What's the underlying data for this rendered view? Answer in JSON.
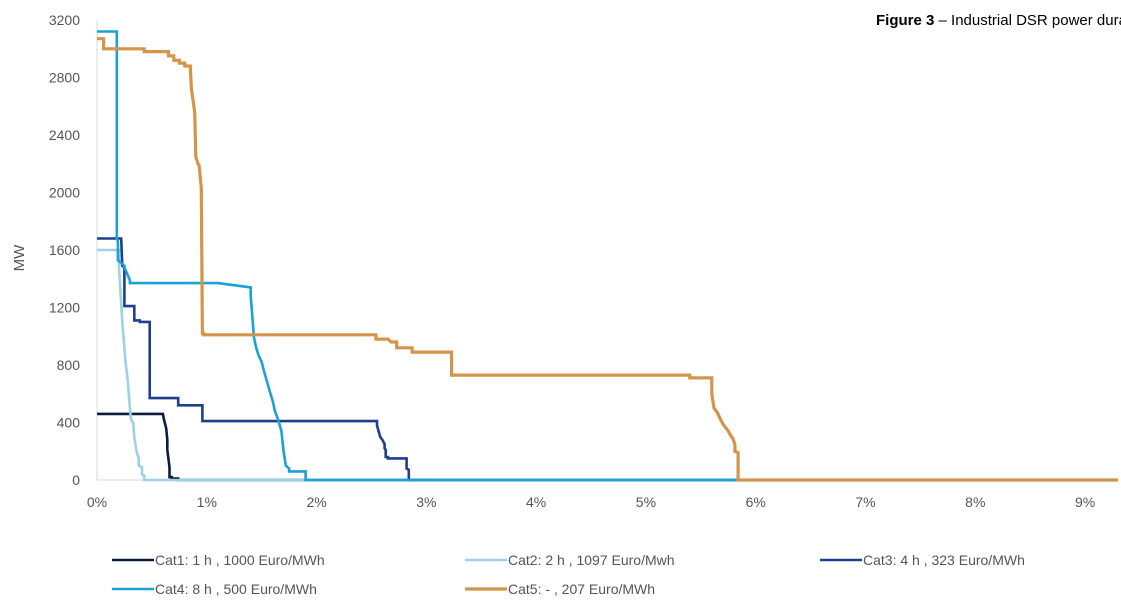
{
  "chart_data": {
    "type": "line",
    "title": "Figure 3",
    "subtitle": " – Industrial DSR power duration cu",
    "xlabel": "",
    "ylabel": "MW",
    "xlim": [
      0,
      9.3
    ],
    "ylim": [
      0,
      3200
    ],
    "x_ticks": [
      0,
      1,
      2,
      3,
      4,
      5,
      6,
      7,
      8,
      9
    ],
    "x_tick_labels": [
      "0%",
      "1%",
      "2%",
      "3%",
      "4%",
      "5%",
      "6%",
      "7%",
      "8%",
      "9%"
    ],
    "y_ticks": [
      0,
      400,
      800,
      1200,
      1600,
      2000,
      2400,
      2800,
      3200
    ],
    "y_tick_labels": [
      "0",
      "400",
      "800",
      "1200",
      "1600",
      "2000",
      "2400",
      "2800",
      "3200"
    ],
    "grid": false,
    "legend_position": "bottom",
    "series": [
      {
        "name": "Cat1: 1 h , 1000 Euro/MWh",
        "color": "#0d1b3e",
        "x": [
          0,
          0.6,
          0.61,
          0.63,
          0.64,
          0.64,
          0.65,
          0.66,
          0.66,
          0.68,
          0.68,
          0.74,
          0.74,
          9.3
        ],
        "y": [
          460,
          460,
          420,
          360,
          280,
          210,
          150,
          90,
          20,
          20,
          10,
          10,
          0,
          0
        ]
      },
      {
        "name": "Cat2: 2 h , 1097 Euro/Mwh",
        "color": "#9dd1e5",
        "x": [
          0,
          0.2,
          0.2,
          0.23,
          0.26,
          0.28,
          0.3,
          0.31,
          0.33,
          0.34,
          0.36,
          0.38,
          0.38,
          0.41,
          0.41,
          0.43,
          0.43,
          9.3
        ],
        "y": [
          1600,
          1600,
          1480,
          1100,
          820,
          700,
          500,
          420,
          400,
          300,
          200,
          150,
          100,
          90,
          40,
          30,
          0,
          0
        ]
      },
      {
        "name": "Cat3: 4 h , 323 Euro/MWh",
        "color": "#1f3f8c",
        "x": [
          0,
          0.22,
          0.23,
          0.25,
          0.25,
          0.34,
          0.34,
          0.39,
          0.39,
          0.48,
          0.48,
          0.74,
          0.74,
          0.96,
          0.96,
          2.55,
          2.55,
          2.58,
          2.6,
          2.62,
          2.62,
          2.63,
          2.63,
          2.65,
          2.65,
          2.82,
          2.82,
          2.84,
          2.84,
          9.3
        ],
        "y": [
          1680,
          1680,
          1490,
          1480,
          1210,
          1210,
          1110,
          1110,
          1100,
          1100,
          570,
          570,
          520,
          520,
          410,
          410,
          380,
          300,
          280,
          250,
          220,
          210,
          160,
          160,
          150,
          150,
          80,
          70,
          0,
          0
        ]
      },
      {
        "name": "Cat4: 8 h , 500 Euro/MWh",
        "color": "#1aa1d8",
        "x": [
          0,
          0.18,
          0.18,
          0.19,
          0.19,
          0.25,
          0.25,
          0.3,
          0.3,
          0.93,
          1.1,
          1.4,
          1.4,
          1.43,
          1.45,
          1.47,
          1.5,
          1.52,
          1.55,
          1.58,
          1.6,
          1.62,
          1.65,
          1.68,
          1.7,
          1.72,
          1.75,
          1.75,
          1.9,
          1.9,
          9.3
        ],
        "y": [
          3120,
          3120,
          1680,
          1660,
          1530,
          1490,
          1480,
          1390,
          1370,
          1370,
          1370,
          1340,
          1280,
          990,
          920,
          870,
          820,
          760,
          680,
          600,
          550,
          480,
          420,
          340,
          200,
          100,
          80,
          60,
          60,
          0,
          0
        ]
      },
      {
        "name": "Cat5: - , 207 Euro/MWh",
        "color": "#d4954a",
        "x": [
          0,
          0.06,
          0.06,
          0.43,
          0.43,
          0.65,
          0.65,
          0.7,
          0.7,
          0.75,
          0.75,
          0.8,
          0.8,
          0.85,
          0.86,
          0.89,
          0.9,
          0.92,
          0.93,
          0.95,
          0.96,
          0.97,
          0.97,
          2.54,
          2.54,
          2.65,
          2.68,
          2.73,
          2.73,
          2.87,
          2.87,
          3.23,
          3.23,
          5.4,
          5.4,
          5.6,
          5.6,
          5.62,
          5.65,
          5.68,
          5.7,
          5.72,
          5.75,
          5.77,
          5.79,
          5.81,
          5.81,
          5.84,
          5.84,
          9.3
        ],
        "y": [
          3070,
          3070,
          3000,
          3000,
          2980,
          2980,
          2950,
          2950,
          2920,
          2920,
          2900,
          2900,
          2880,
          2880,
          2720,
          2560,
          2250,
          2200,
          2190,
          2030,
          1020,
          1020,
          1010,
          1010,
          980,
          980,
          960,
          960,
          920,
          920,
          890,
          890,
          730,
          730,
          710,
          710,
          600,
          500,
          470,
          420,
          390,
          370,
          340,
          310,
          290,
          250,
          200,
          190,
          0,
          0
        ]
      }
    ]
  }
}
